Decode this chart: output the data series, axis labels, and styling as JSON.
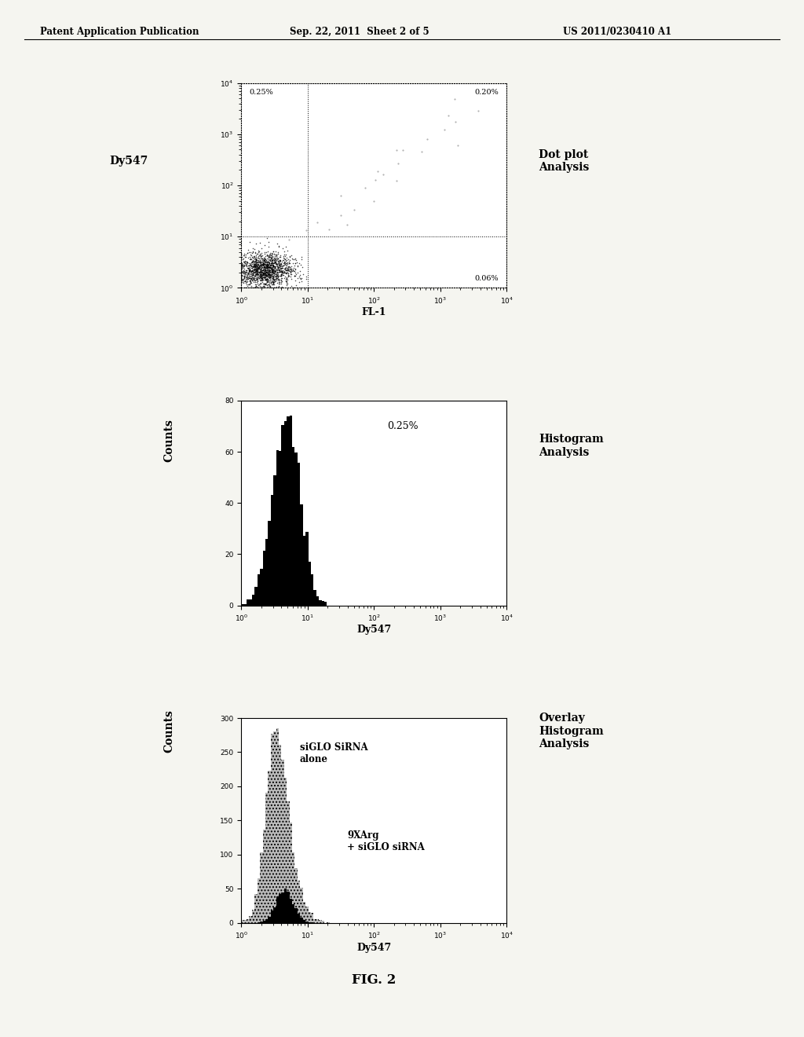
{
  "header_left": "Patent Application Publication",
  "header_mid": "Sep. 22, 2011  Sheet 2 of 5",
  "header_right": "US 2011/0230410 A1",
  "fig_label": "FIG. 2",
  "dot_plot": {
    "ylabel": "Dy547",
    "xlabel": "FL-1",
    "xlim": [
      1.0,
      10000.0
    ],
    "ylim": [
      1.0,
      10000.0
    ],
    "label_UL": "0.25%",
    "label_UR": "0.20%",
    "label_LR": "0.06%",
    "divider_x": 10.0,
    "divider_y": 10.0,
    "right_label": "Dot plot\nAnalysis"
  },
  "histogram": {
    "ylabel": "Counts",
    "xlabel": "Dy547",
    "xlim": [
      1.0,
      10000.0
    ],
    "ylim": [
      0,
      80
    ],
    "yticks": [
      0,
      20,
      40,
      60,
      80
    ],
    "label": "0.25%",
    "right_label": "Histogram\nAnalysis"
  },
  "overlay": {
    "ylabel": "Counts",
    "xlabel": "Dy547",
    "xlim": [
      1.0,
      10000.0
    ],
    "ylim": [
      0,
      300
    ],
    "yticks": [
      0,
      50,
      100,
      150,
      200,
      250,
      300
    ],
    "label1": "siGLO SiRNA\nalone",
    "label2": "9XArg\n+ siGLO siRNA",
    "right_label": "Overlay\nHistogram\nAnalysis"
  },
  "bg_color": "#f5f5f0",
  "plot_bg_color": "#ffffff",
  "border_color": "#000000",
  "text_color": "#000000"
}
